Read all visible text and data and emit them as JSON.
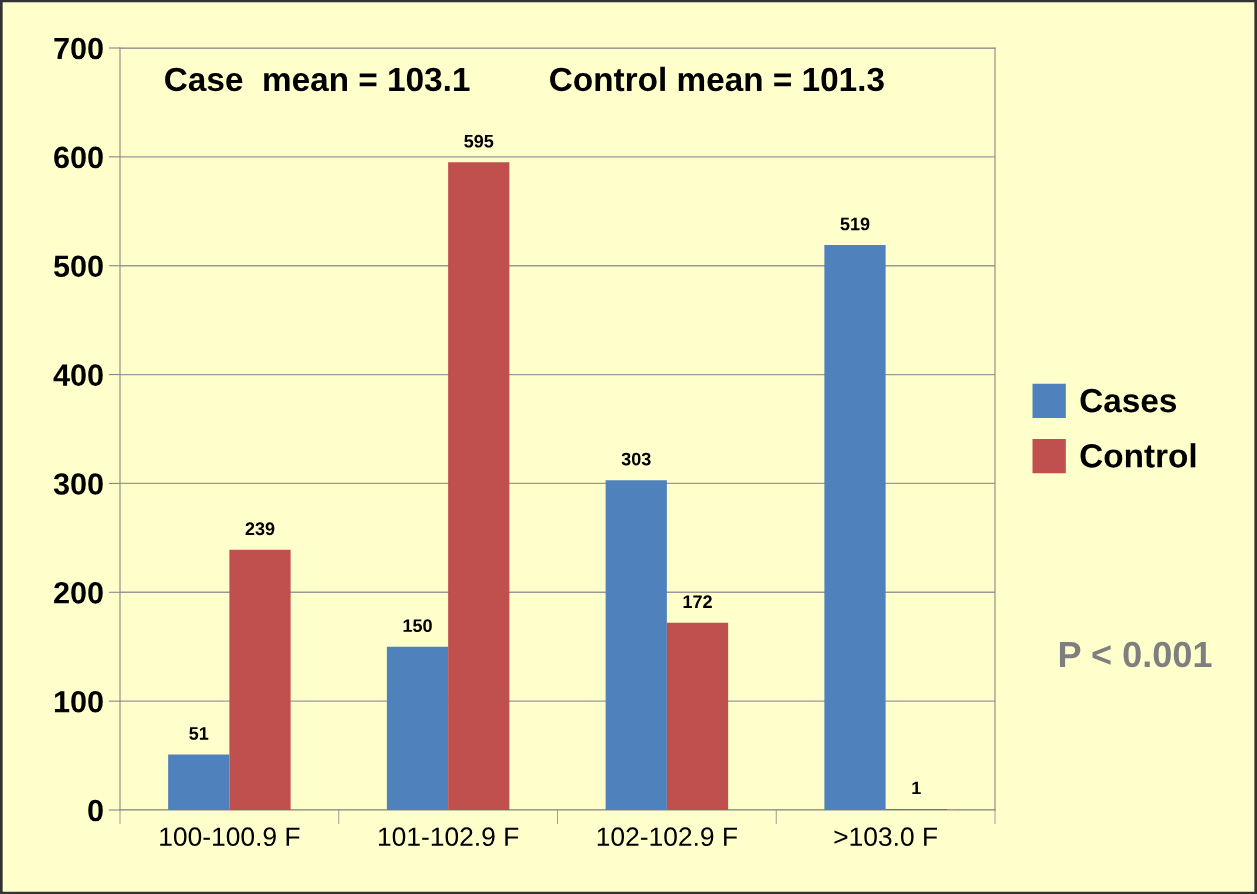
{
  "chart_data": {
    "type": "bar",
    "categories": [
      "100-100.9 F",
      "101-102.9 F",
      "102-102.9 F",
      ">103.0 F"
    ],
    "series": [
      {
        "name": "Cases",
        "color": "#4f81bd",
        "values": [
          51,
          150,
          303,
          519
        ]
      },
      {
        "name": "Control",
        "color": "#c0504d",
        "values": [
          239,
          595,
          172,
          1
        ]
      }
    ],
    "ylim": [
      0,
      700
    ],
    "yticks": [
      0,
      100,
      200,
      300,
      400,
      500,
      600,
      700
    ],
    "grid": "y",
    "legend": "right",
    "data_labels": true,
    "annotations": [
      "Case  mean = 103.1",
      "Control mean = 101.3",
      "P < 0.001"
    ]
  }
}
